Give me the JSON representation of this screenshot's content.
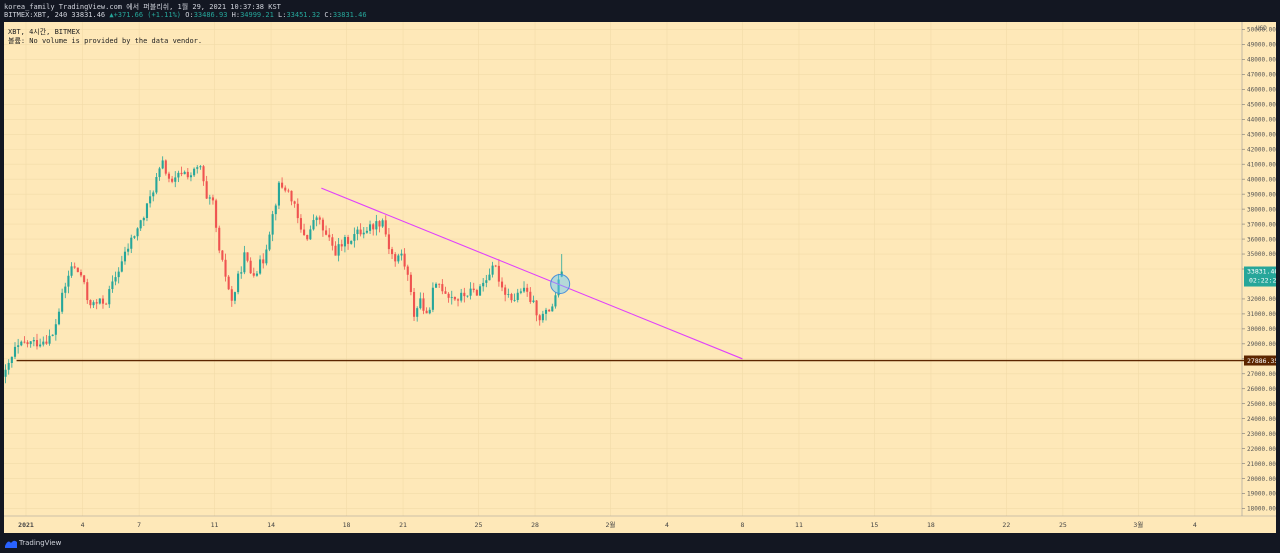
{
  "header": {
    "title": "korea_family TradingView.com 에서 퍼블리쉬, 1월 29, 2021 10:37:38 KST",
    "symbol_line": "BITMEX:XBT, 240 33831.46",
    "change": "▲+371.66 (+1.11%)",
    "ohlc": {
      "open_label": "O:",
      "open": "33486.93",
      "high_label": "H:",
      "high": "34999.21",
      "low_label": "L:",
      "low": "33451.32",
      "close_label": "C:",
      "close": "33831.46"
    }
  },
  "legend": {
    "line1": "XBT, 4시간, BITMEX",
    "line2": "볼륨: No volume is provided by the data vendor."
  },
  "price_scale": {
    "currency": "USD",
    "last_price_label": "33831.46",
    "countdown_label": "02:22:23",
    "level_label": "27886.35"
  },
  "footer": {
    "brand": "TradingView"
  },
  "colors": {
    "background": "#fee8b8",
    "up": "#26a69a",
    "down": "#ef5350",
    "trendline": "#e040fb",
    "horizontal_line": "#5d2600",
    "circle": "#4a90d9"
  },
  "chart_data": {
    "type": "candlestick",
    "symbol": "BITMEX:XBT",
    "interval": "240",
    "y_axis": {
      "ylim": [
        17500,
        50500
      ],
      "tick_labels": [
        "18000.00",
        "19000.00",
        "20000.00",
        "21000.00",
        "22000.00",
        "23000.00",
        "24000.00",
        "25000.00",
        "26000.00",
        "27000.00",
        "28000.00",
        "29000.00",
        "30000.00",
        "31000.00",
        "32000.00",
        "34000.00",
        "35000.00",
        "36000.00",
        "37000.00",
        "38000.00",
        "39000.00",
        "40000.00",
        "41000.00",
        "42000.00",
        "43000.00",
        "44000.00",
        "45000.00",
        "46000.00",
        "47000.00",
        "48000.00",
        "49000.00",
        "50000.00"
      ],
      "ticks": [
        18000,
        19000,
        20000,
        21000,
        22000,
        23000,
        24000,
        25000,
        26000,
        27000,
        28000,
        29000,
        30000,
        31000,
        32000,
        34000,
        35000,
        36000,
        37000,
        38000,
        39000,
        40000,
        41000,
        42000,
        43000,
        44000,
        45000,
        46000,
        47000,
        48000,
        49000,
        50000
      ]
    },
    "x_axis": {
      "xlim": [
        "2020-12-30T20:00",
        "2021-03-06T12:00"
      ],
      "ticks": [
        {
          "date": "2021-01-01",
          "label": "2021"
        },
        {
          "date": "2021-01-04",
          "label": "4"
        },
        {
          "date": "2021-01-07",
          "label": "7"
        },
        {
          "date": "2021-01-11",
          "label": "11"
        },
        {
          "date": "2021-01-14",
          "label": "14"
        },
        {
          "date": "2021-01-18",
          "label": "18"
        },
        {
          "date": "2021-01-21",
          "label": "21"
        },
        {
          "date": "2021-01-25",
          "label": "25"
        },
        {
          "date": "2021-01-28",
          "label": "28"
        },
        {
          "date": "2021-02-01",
          "label": "2월"
        },
        {
          "date": "2021-02-04",
          "label": "4"
        },
        {
          "date": "2021-02-08",
          "label": "8"
        },
        {
          "date": "2021-02-11",
          "label": "11"
        },
        {
          "date": "2021-02-15",
          "label": "15"
        },
        {
          "date": "2021-02-18",
          "label": "18"
        },
        {
          "date": "2021-02-22",
          "label": "22"
        },
        {
          "date": "2021-02-25",
          "label": "25"
        },
        {
          "date": "2021-03-01",
          "label": "3월"
        },
        {
          "date": "2021-03-04",
          "label": "4"
        }
      ]
    },
    "anchors": [
      {
        "t": "2020-12-30T20:00",
        "p": 27000
      },
      {
        "t": "2020-12-31T08:00",
        "p": 28600
      },
      {
        "t": "2020-12-31T20:00",
        "p": 29000
      },
      {
        "t": "2021-01-01T12:00",
        "p": 29100
      },
      {
        "t": "2021-01-02T08:00",
        "p": 29500
      },
      {
        "t": "2021-01-02T20:00",
        "p": 32100
      },
      {
        "t": "2021-01-03T08:00",
        "p": 34200
      },
      {
        "t": "2021-01-03T20:00",
        "p": 33600
      },
      {
        "t": "2021-01-04T04:00",
        "p": 32000
      },
      {
        "t": "2021-01-04T12:00",
        "p": 31600
      },
      {
        "t": "2021-01-05T04:00",
        "p": 31900
      },
      {
        "t": "2021-01-05T20:00",
        "p": 34000
      },
      {
        "t": "2021-01-06T12:00",
        "p": 35900
      },
      {
        "t": "2021-01-07T04:00",
        "p": 37500
      },
      {
        "t": "2021-01-07T20:00",
        "p": 40000
      },
      {
        "t": "2021-01-08T04:00",
        "p": 41000
      },
      {
        "t": "2021-01-08T16:00",
        "p": 39600
      },
      {
        "t": "2021-01-09T04:00",
        "p": 40500
      },
      {
        "t": "2021-01-09T16:00",
        "p": 40300
      },
      {
        "t": "2021-01-10T04:00",
        "p": 40800
      },
      {
        "t": "2021-01-10T12:00",
        "p": 38500
      },
      {
        "t": "2021-01-10T20:00",
        "p": 38400
      },
      {
        "t": "2021-01-11T04:00",
        "p": 35000
      },
      {
        "t": "2021-01-11T12:00",
        "p": 33600
      },
      {
        "t": "2021-01-11T20:00",
        "p": 31800
      },
      {
        "t": "2021-01-12T12:00",
        "p": 34900
      },
      {
        "t": "2021-01-12T20:00",
        "p": 33800
      },
      {
        "t": "2021-01-13T04:00",
        "p": 34000
      },
      {
        "t": "2021-01-13T12:00",
        "p": 34600
      },
      {
        "t": "2021-01-14T00:00",
        "p": 37600
      },
      {
        "t": "2021-01-14T08:00",
        "p": 39500
      },
      {
        "t": "2021-01-14T16:00",
        "p": 39400
      },
      {
        "t": "2021-01-15T00:00",
        "p": 38800
      },
      {
        "t": "2021-01-15T12:00",
        "p": 36500
      },
      {
        "t": "2021-01-15T20:00",
        "p": 36200
      },
      {
        "t": "2021-01-16T08:00",
        "p": 37500
      },
      {
        "t": "2021-01-16T20:00",
        "p": 36200
      },
      {
        "t": "2021-01-17T08:00",
        "p": 35200
      },
      {
        "t": "2021-01-17T20:00",
        "p": 35800
      },
      {
        "t": "2021-01-18T12:00",
        "p": 36400
      },
      {
        "t": "2021-01-19T04:00",
        "p": 36800
      },
      {
        "t": "2021-01-19T20:00",
        "p": 37300
      },
      {
        "t": "2021-01-20T04:00",
        "p": 35500
      },
      {
        "t": "2021-01-20T12:00",
        "p": 34500
      },
      {
        "t": "2021-01-20T20:00",
        "p": 35000
      },
      {
        "t": "2021-01-21T04:00",
        "p": 33500
      },
      {
        "t": "2021-01-21T12:00",
        "p": 31000
      },
      {
        "t": "2021-01-21T20:00",
        "p": 32000
      },
      {
        "t": "2021-01-22T04:00",
        "p": 30700
      },
      {
        "t": "2021-01-22T12:00",
        "p": 32500
      },
      {
        "t": "2021-01-22T20:00",
        "p": 33000
      },
      {
        "t": "2021-01-23T08:00",
        "p": 32300
      },
      {
        "t": "2021-01-23T20:00",
        "p": 32000
      },
      {
        "t": "2021-01-24T08:00",
        "p": 32400
      },
      {
        "t": "2021-01-24T20:00",
        "p": 32500
      },
      {
        "t": "2021-01-25T04:00",
        "p": 33100
      },
      {
        "t": "2021-01-25T12:00",
        "p": 33800
      },
      {
        "t": "2021-01-25T20:00",
        "p": 34000
      },
      {
        "t": "2021-01-26T04:00",
        "p": 32800
      },
      {
        "t": "2021-01-26T12:00",
        "p": 32300
      },
      {
        "t": "2021-01-26T20:00",
        "p": 32000
      },
      {
        "t": "2021-01-27T04:00",
        "p": 32600
      },
      {
        "t": "2021-01-27T12:00",
        "p": 32300
      },
      {
        "t": "2021-01-27T20:00",
        "p": 31600
      },
      {
        "t": "2021-01-28T04:00",
        "p": 30800
      },
      {
        "t": "2021-01-28T12:00",
        "p": 31000
      },
      {
        "t": "2021-01-28T20:00",
        "p": 31600
      },
      {
        "t": "2021-01-29T04:00",
        "p": 33000
      },
      {
        "t": "2021-01-29T08:00",
        "p": 33831.46
      }
    ],
    "last": {
      "time": "2021-01-29T08:00",
      "open": 33486.93,
      "high": 34999.21,
      "low": 33451.32,
      "close": 33831.46
    },
    "drawings": {
      "trendline": [
        {
          "t": "2021-01-16T16:00",
          "p": 39400
        },
        {
          "t": "2021-02-08T00:00",
          "p": 28000
        }
      ],
      "horizontal_line": {
        "from": "2020-12-31T12:00",
        "price": 27886.35
      },
      "circle": {
        "t": "2021-01-29T08:00",
        "p": 33000
      }
    }
  }
}
